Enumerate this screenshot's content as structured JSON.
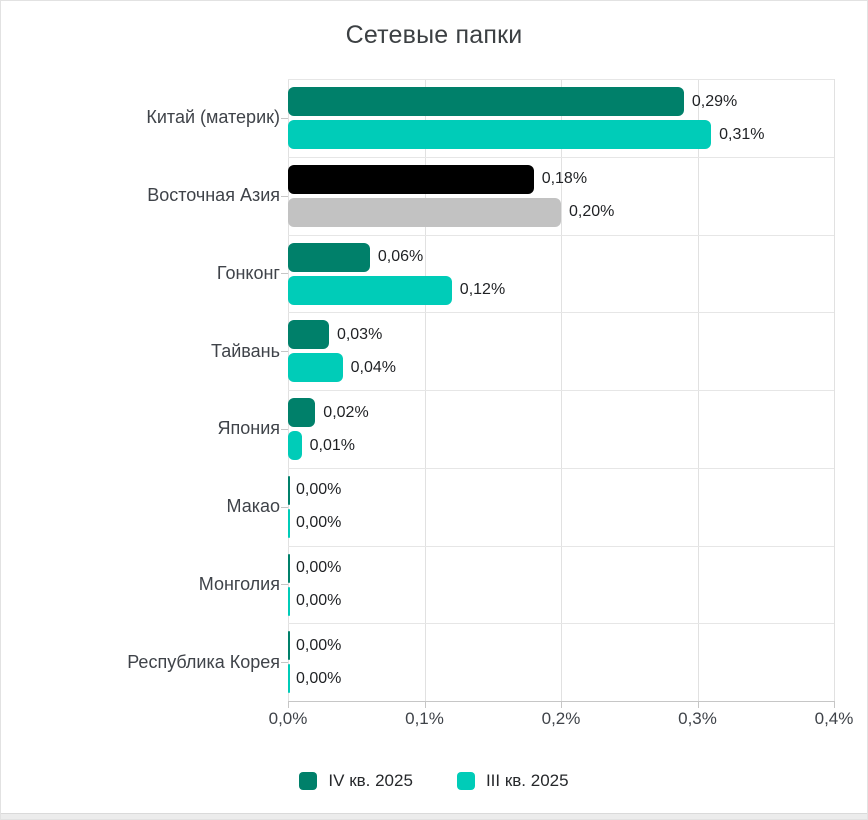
{
  "title": "Сетевые папки",
  "chart_data": {
    "type": "bar",
    "orientation": "horizontal",
    "title": "Сетевые папки",
    "categories": [
      "Китай (материк)",
      "Восточная Азия",
      "Гонконг",
      "Тайвань",
      "Япония",
      "Макао",
      "Монголия",
      "Республика Корея"
    ],
    "series": [
      {
        "name": "IV кв. 2025",
        "color": "#00806a",
        "values": [
          0.29,
          0.18,
          0.06,
          0.03,
          0.02,
          0.0,
          0.0,
          0.0
        ],
        "labels": [
          "0,29%",
          "0,18%",
          "0,06%",
          "0,03%",
          "0,02%",
          "0,00%",
          "0,00%",
          "0,00%"
        ]
      },
      {
        "name": "III кв. 2025",
        "color": "#00ccb8",
        "values": [
          0.31,
          0.2,
          0.12,
          0.04,
          0.01,
          0.0,
          0.0,
          0.0
        ],
        "labels": [
          "0,31%",
          "0,20%",
          "0,12%",
          "0,04%",
          "0,01%",
          "0,00%",
          "0,00%",
          "0,00%"
        ]
      }
    ],
    "highlighted_category": "Восточная Азия",
    "highlight_colors": [
      "#000000",
      "#c2c2c2"
    ],
    "xlim": [
      0,
      0.4
    ],
    "x_ticks": [
      "0,0%",
      "0,1%",
      "0,2%",
      "0,3%",
      "0,4%"
    ],
    "grid": true,
    "legend_position": "bottom"
  },
  "legend": {
    "items": [
      {
        "label": "IV кв. 2025",
        "color": "#00806a"
      },
      {
        "label": "III кв. 2025",
        "color": "#00ccb8"
      }
    ]
  },
  "colors": {
    "grid": "#e6e6e6",
    "axis": "#c6c6c6",
    "title_text": "#3c4043",
    "label_text": "#3f4349",
    "value_text": "#1f2124"
  }
}
